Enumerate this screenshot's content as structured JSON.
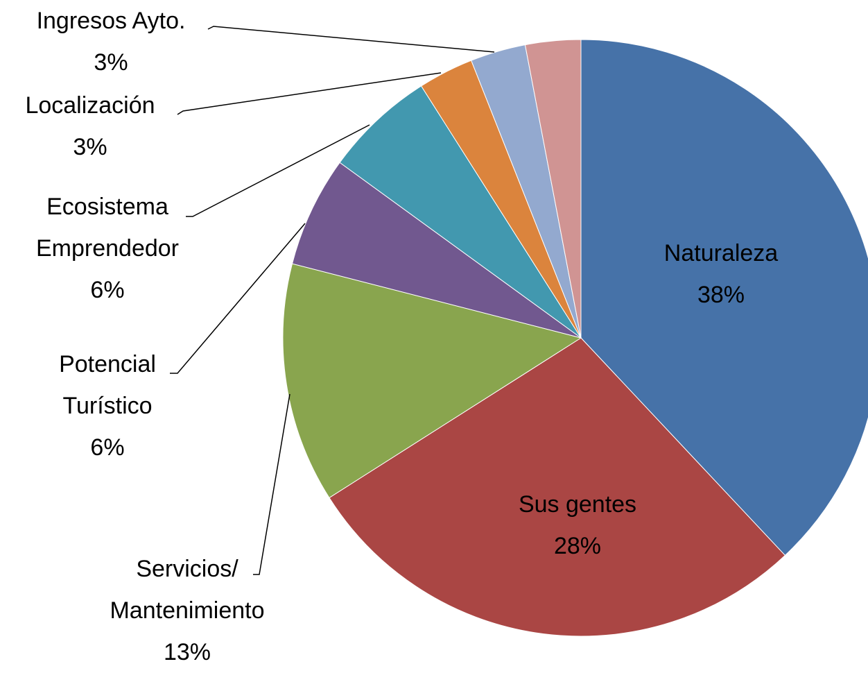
{
  "chart_data": {
    "type": "pie",
    "categories": [
      "Naturaleza",
      "Sus gentes",
      "Servicios/ Mantenimiento",
      "Potencial Turístico",
      "Ecosistema Emprendedor",
      "Localización",
      "Ingresos Ayto.",
      null
    ],
    "values": [
      38,
      28,
      13,
      6,
      6,
      3,
      3,
      3
    ],
    "value_labels": [
      "38%",
      "28%",
      "13%",
      "6%",
      "6%",
      "3%",
      "3%",
      null
    ],
    "colors": [
      "#4672a8",
      "#aa4644",
      "#89a54e",
      "#71588f",
      "#4298af",
      "#db843d",
      "#93a9cf",
      "#d09493"
    ]
  }
}
